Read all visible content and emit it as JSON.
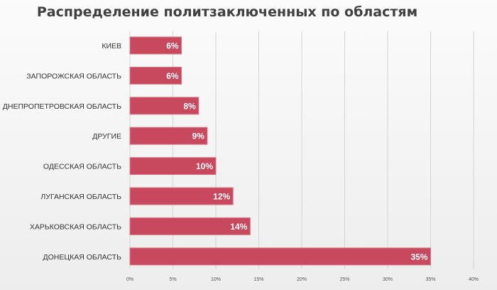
{
  "chart_data": {
    "type": "bar",
    "orientation": "horizontal",
    "title": "Распределение политзаключенных по областям",
    "categories": [
      "КИЕВ",
      "ЗАПОРОЖСКАЯ ОБЛАСТЬ",
      "ДНЕПРОПЕТРОВСКАЯ ОБЛАСТЬ",
      "ДРУГИЕ",
      "ОДЕССКАЯ ОБЛАСТЬ",
      "ЛУГАНСКАЯ ОБЛАСТЬ",
      "ХАРЬКОВСКАЯ ОБЛАСТЬ",
      "ДОНЕЦКАЯ ОБЛАСТЬ"
    ],
    "values": [
      6,
      6,
      8,
      9,
      10,
      12,
      14,
      35
    ],
    "data_labels": [
      "6%",
      "6%",
      "8%",
      "9%",
      "10%",
      "12%",
      "14%",
      "35%"
    ],
    "xlim": [
      0,
      40
    ],
    "x_ticks": [
      0,
      5,
      10,
      15,
      20,
      25,
      30,
      35,
      40
    ],
    "x_tick_labels": [
      "0%",
      "5%",
      "10%",
      "15%",
      "20%",
      "25%",
      "30%",
      "35%",
      "40%"
    ],
    "xlabel": "",
    "ylabel": "",
    "grid": "vertical",
    "legend": "none",
    "bar_color": "#c8485d",
    "bar_edge_color": "#d97c8a"
  }
}
